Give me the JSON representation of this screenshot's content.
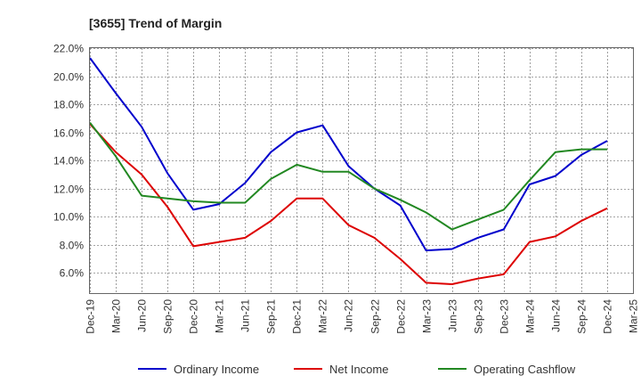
{
  "chart_data": {
    "type": "line",
    "title": "[3655]  Trend of Margin",
    "xlabel": "",
    "ylabel": "",
    "x": [
      "Dec-19",
      "Mar-20",
      "Jun-20",
      "Sep-20",
      "Dec-20",
      "Mar-21",
      "Jun-21",
      "Sep-21",
      "Dec-21",
      "Mar-22",
      "Jun-22",
      "Sep-22",
      "Dec-22",
      "Mar-23",
      "Jun-23",
      "Sep-23",
      "Dec-23",
      "Mar-24",
      "Jun-24",
      "Sep-24",
      "Dec-24",
      "Mar-25"
    ],
    "ylim": [
      4.5,
      22.0
    ],
    "yticks": [
      6.0,
      8.0,
      10.0,
      12.0,
      14.0,
      16.0,
      18.0,
      20.0,
      22.0
    ],
    "ytick_labels": [
      "6.0%",
      "8.0%",
      "10.0%",
      "12.0%",
      "14.0%",
      "16.0%",
      "18.0%",
      "20.0%",
      "22.0%"
    ],
    "grid": true,
    "legend_position": "bottom",
    "series": [
      {
        "name": "Ordinary Income",
        "color": "#0000cc",
        "values": [
          21.3,
          18.8,
          16.4,
          13.1,
          10.5,
          10.9,
          12.4,
          14.6,
          16.0,
          16.5,
          13.6,
          12.0,
          10.8,
          7.6,
          7.7,
          8.5,
          9.1,
          12.3,
          12.9,
          14.4,
          15.4,
          null
        ]
      },
      {
        "name": "Net Income",
        "color": "#dd0000",
        "values": [
          16.6,
          14.6,
          13.0,
          10.7,
          7.9,
          8.2,
          8.5,
          9.7,
          11.3,
          11.3,
          9.4,
          8.5,
          7.0,
          5.3,
          5.2,
          5.6,
          5.9,
          8.2,
          8.6,
          9.7,
          10.6,
          null
        ]
      },
      {
        "name": "Operating Cashflow",
        "color": "#228822",
        "values": [
          16.7,
          14.3,
          11.5,
          11.3,
          11.1,
          11.0,
          11.0,
          12.7,
          13.7,
          13.2,
          13.2,
          12.0,
          11.2,
          10.3,
          9.1,
          9.8,
          10.5,
          12.6,
          14.6,
          14.8,
          14.8,
          null
        ]
      }
    ]
  }
}
